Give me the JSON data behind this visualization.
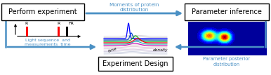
{
  "bg_color": "#ffffff",
  "box1_text": "Perform experiment",
  "box2_text": "Experiment Design",
  "box3_text": "Parameter inference",
  "arrow_top_label": "Moments of protein\ndistribution",
  "sub_label_left": "Light sequence  and\nmeasurements  time",
  "sub_label_right": "Parameter posterior\ndistribution",
  "box_edge_color": "#000000",
  "arrow_color": "#4a90c4",
  "text_color_blue": "#4a90c4",
  "text_color_black": "#000000",
  "figsize": [
    3.86,
    1.07
  ],
  "dpi": 100
}
